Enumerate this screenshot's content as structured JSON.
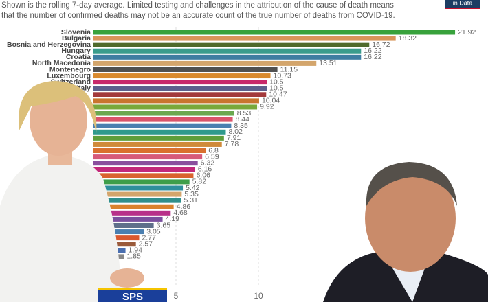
{
  "subtitle_lines": [
    "Shown is the rolling 7-day average. Limited testing and challenges in the attribution of the cause of death means",
    "that the number of confirmed deaths may not be an accurate count of the true number of deaths from COVID-19."
  ],
  "logo": "in Data",
  "badge": "SPS",
  "chart_data": {
    "type": "hbar",
    "categories": [
      "Slovenia",
      "Bulgaria",
      "Bosnia and Herzegovina",
      "Hungary",
      "Croatia",
      "North Macedonia",
      "Montenegro",
      "Luxembourg",
      "Switzerland",
      "Italy",
      null,
      null,
      null,
      null,
      null,
      null,
      null,
      null,
      null,
      null,
      null,
      null,
      null,
      null,
      null,
      null,
      null,
      null,
      null,
      null,
      null,
      null,
      null,
      null,
      null,
      null,
      null
    ],
    "values": [
      21.92,
      18.32,
      16.72,
      16.22,
      16.22,
      13.51,
      11.15,
      10.73,
      10.5,
      10.5,
      10.47,
      10.04,
      9.92,
      8.53,
      8.44,
      8.35,
      8.02,
      7.91,
      7.78,
      6.8,
      6.59,
      6.32,
      6.16,
      6.06,
      5.82,
      5.42,
      5.35,
      5.31,
      4.86,
      4.68,
      4.19,
      3.65,
      3.05,
      2.77,
      2.57,
      1.94,
      1.85
    ],
    "colors": [
      "#38a23c",
      "#d9955a",
      "#4f6a2c",
      "#3a9c8c",
      "#3e7da1",
      "#d3a56c",
      "#505050",
      "#d98a2e",
      "#c8286a",
      "#5d5f8c",
      "#a3393b",
      "#c9752e",
      "#79a83a",
      "#6aa84f",
      "#d9546a",
      "#4a7fb0",
      "#2f9a8c",
      "#5e9e3a",
      "#d08a3a",
      "#d9702e",
      "#d65a7a",
      "#8a4f9e",
      "#c2287a",
      "#d9622e",
      "#3e9e4a",
      "#2f8f9c",
      "#d3a56c",
      "#2f8f8c",
      "#d9822e",
      "#b8308a",
      "#7a4f9e",
      "#5e6f8a",
      "#4a7fb0",
      "#d9582e",
      "#9a5a3a",
      "#4a6fb0",
      "#888888"
    ],
    "xlim": [
      0,
      22
    ],
    "xticks": [
      5,
      10
    ]
  }
}
